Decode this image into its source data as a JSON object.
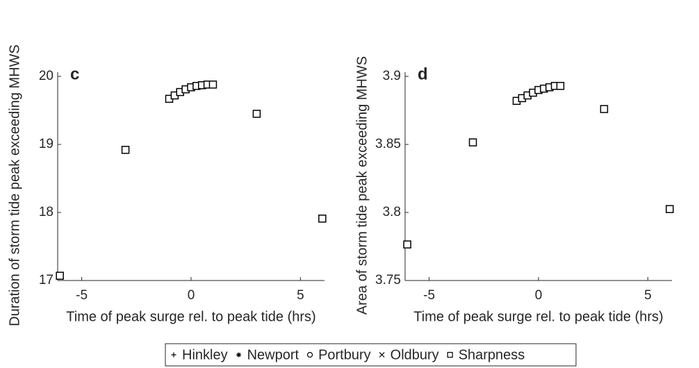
{
  "chart_data": [
    {
      "type": "scatter",
      "panel_label": "c",
      "xlabel": "Time of peak surge rel. to peak tide (hrs)",
      "ylabel": "Duration of storm tide peak exceeding MHWS",
      "x": [
        -6,
        -3,
        -1,
        -0.75,
        -0.5,
        -0.25,
        0,
        0.25,
        0.5,
        0.75,
        1,
        3,
        6
      ],
      "series": [
        {
          "marker": "s",
          "color": "#000000",
          "values": [
            17.07,
            18.92,
            19.67,
            19.72,
            19.77,
            19.81,
            19.84,
            19.86,
            19.87,
            19.88,
            19.88,
            19.45,
            17.91
          ]
        }
      ],
      "xlim": [
        -6.1,
        6.1
      ],
      "ylim": [
        17,
        20
      ],
      "xticks": [
        -5,
        0,
        5
      ],
      "yticks": [
        17,
        18,
        19,
        20
      ]
    },
    {
      "type": "scatter",
      "panel_label": "d",
      "xlabel": "Time of peak surge rel. to peak tide (hrs)",
      "ylabel": "Area of storm tide peak exceeding MHWS",
      "x": [
        -6,
        -3,
        -1,
        -0.75,
        -0.5,
        -0.25,
        0,
        0.25,
        0.5,
        0.75,
        1,
        3,
        6
      ],
      "series": [
        {
          "marker": "s",
          "color": "#000000",
          "values": [
            3.7765,
            3.8515,
            3.882,
            3.884,
            3.886,
            3.888,
            3.89,
            3.891,
            3.892,
            3.893,
            3.893,
            3.876,
            3.8025
          ]
        }
      ],
      "xlim": [
        -6.1,
        6.1
      ],
      "ylim": [
        3.75,
        3.9
      ],
      "xticks": [
        -5,
        0,
        5
      ],
      "yticks": [
        3.75,
        3.8,
        3.85,
        3.9
      ]
    }
  ],
  "legend": [
    {
      "name": "Hinkley",
      "marker": "+"
    },
    {
      "name": "Newport",
      "marker": "*"
    },
    {
      "name": "Portbury",
      "marker": "o"
    },
    {
      "name": "Oldbury",
      "marker": "x"
    },
    {
      "name": "Sharpness",
      "marker": "s"
    }
  ]
}
